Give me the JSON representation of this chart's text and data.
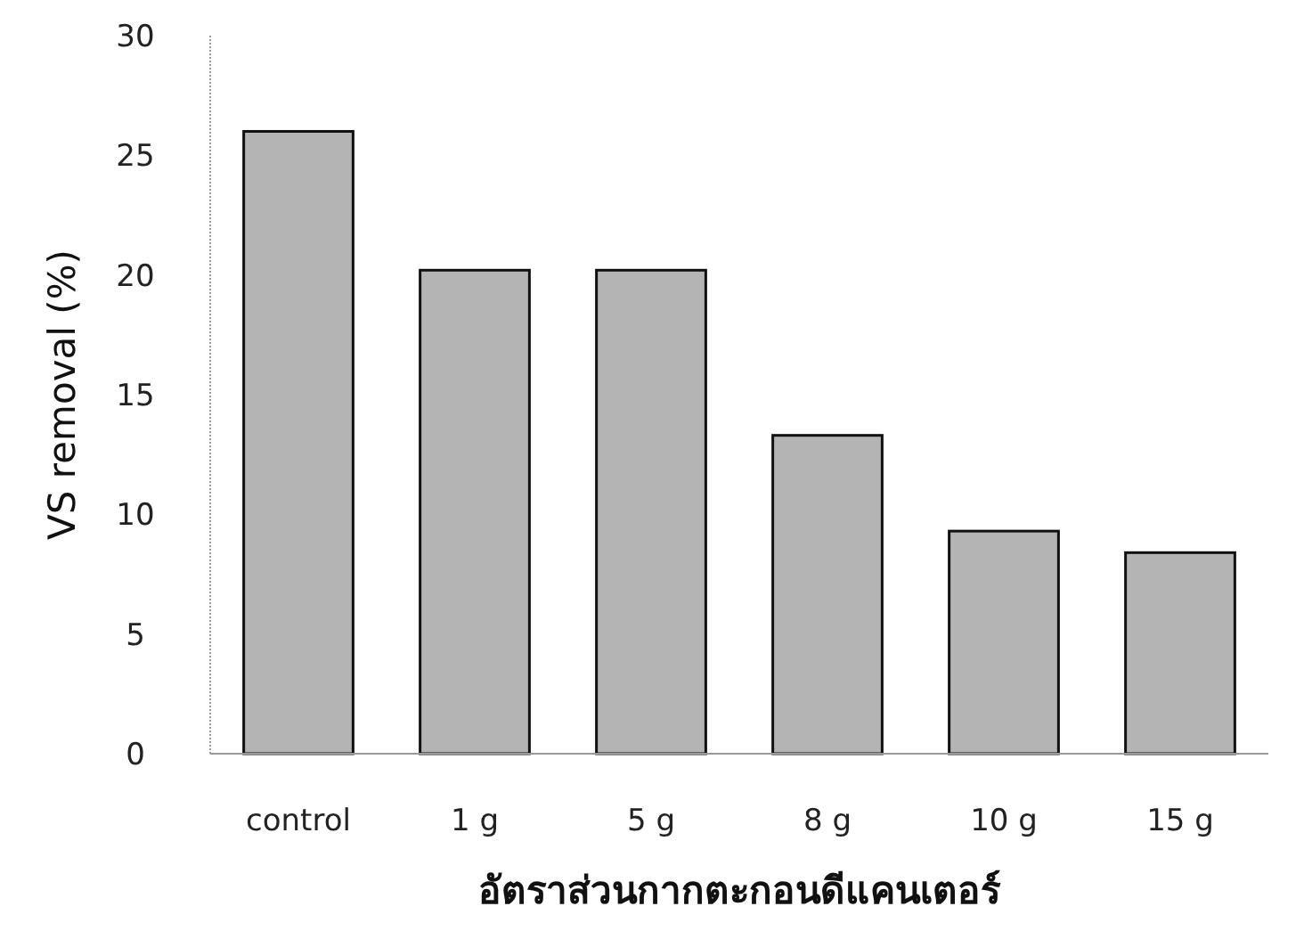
{
  "chart_data": {
    "type": "bar",
    "xlabel": "อัตราส่วนกากตะกอนดีแคนเตอร์",
    "ylabel": "VS removal (%)",
    "categories": [
      "control",
      "1 g",
      "5 g",
      "8 g",
      "10 g",
      "15 g"
    ],
    "values": [
      26.0,
      20.2,
      20.2,
      13.3,
      9.3,
      8.4
    ],
    "color": "#b4b4b4",
    "ylim": [
      0,
      30
    ],
    "yticks": [
      0,
      5,
      10,
      15,
      20,
      25,
      30
    ],
    "grid": false
  }
}
